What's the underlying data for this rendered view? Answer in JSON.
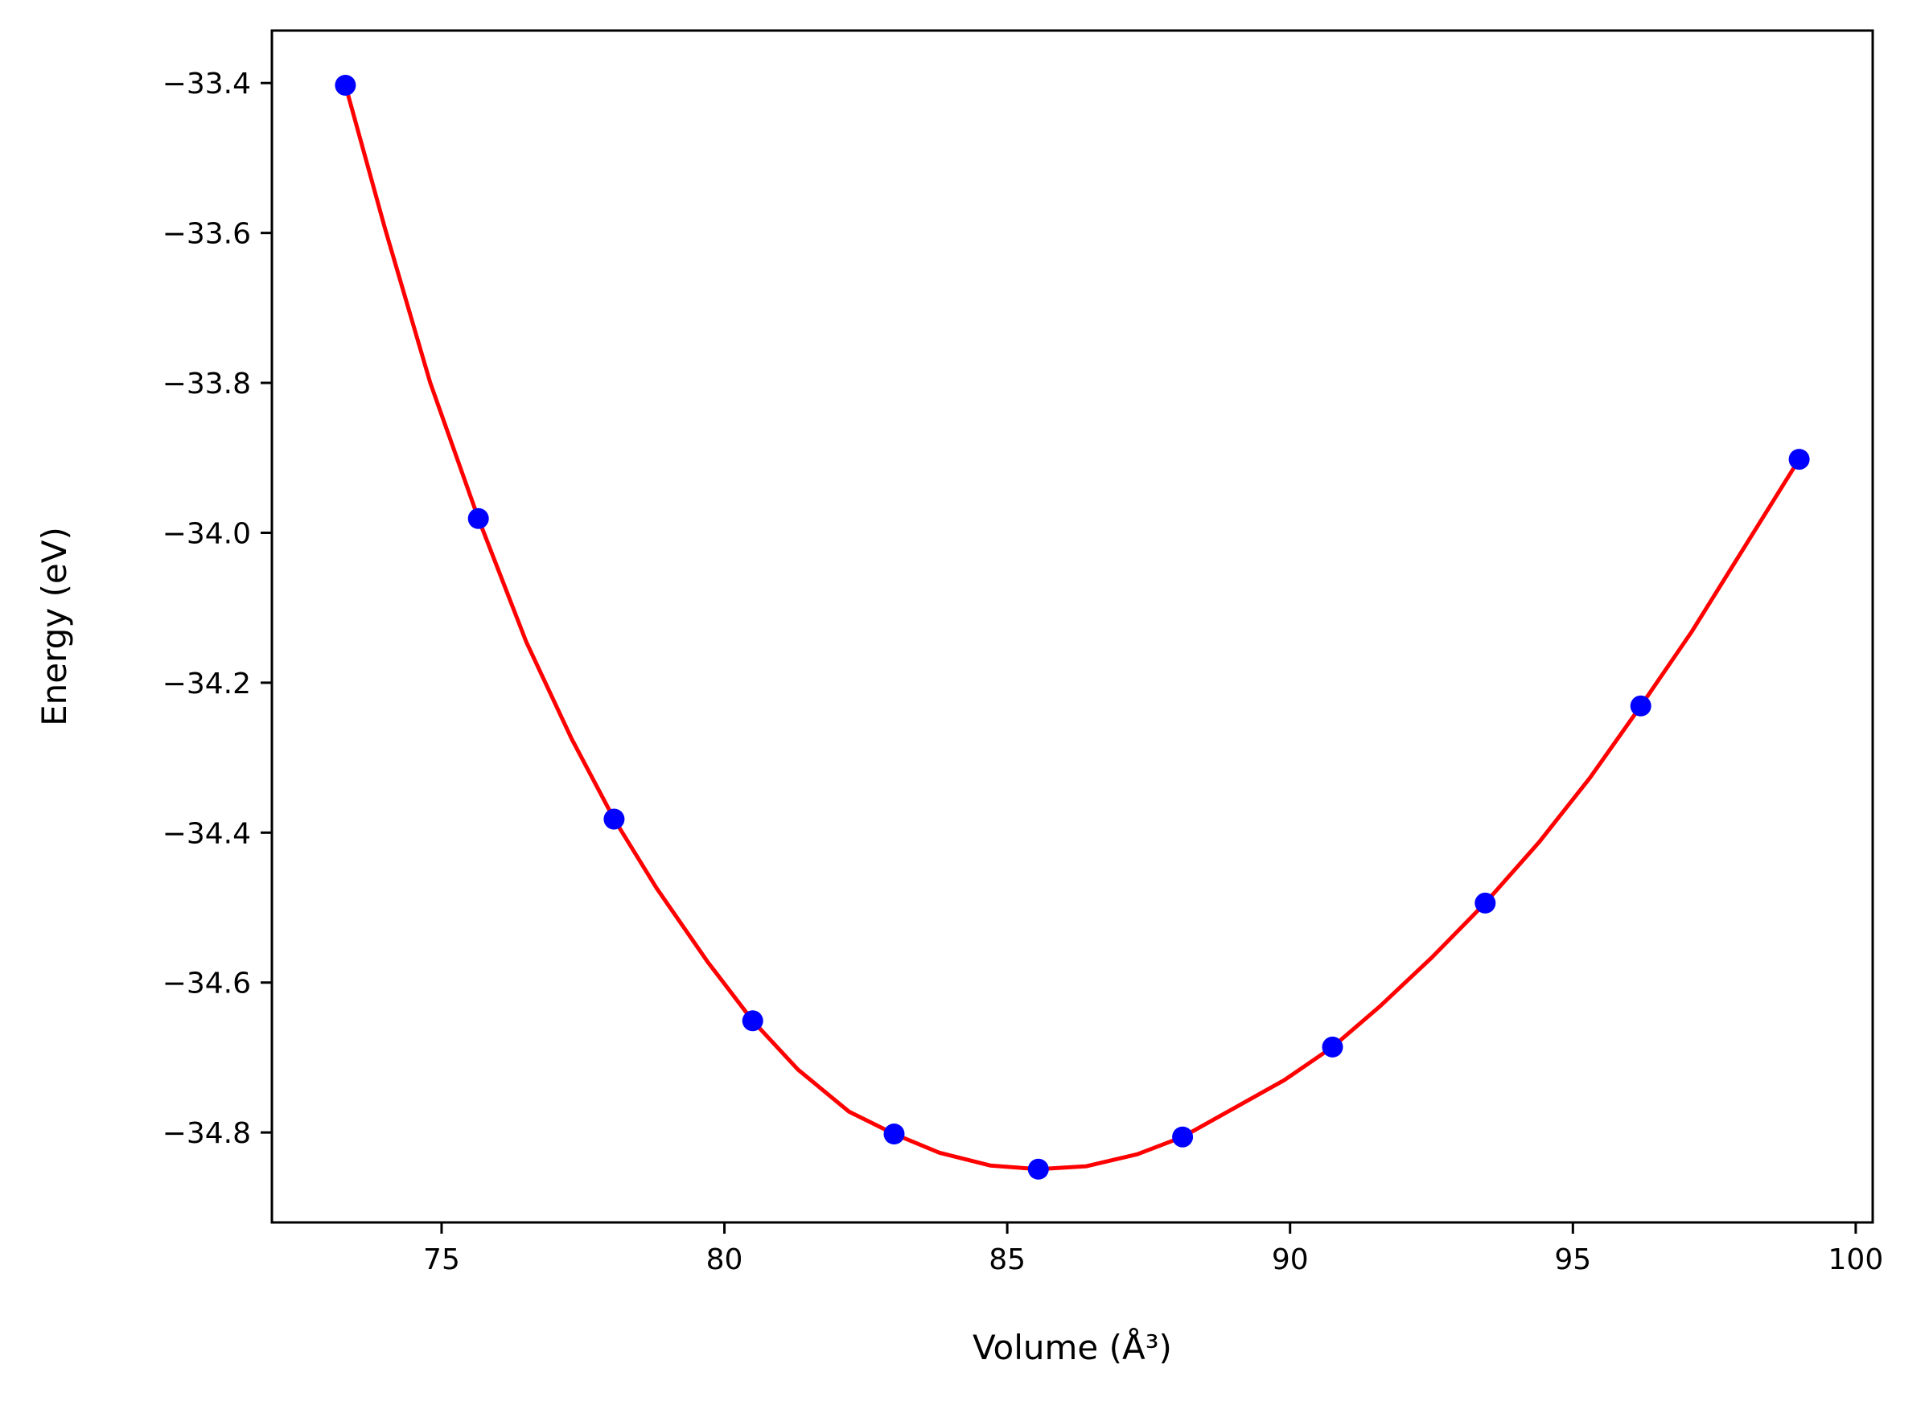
{
  "chart_data": {
    "type": "scatter",
    "title": "",
    "xlabel": "Volume (Å³)",
    "ylabel": "Energy (eV)",
    "xlim": [
      72,
      100.3
    ],
    "ylim": [
      -34.92,
      -33.33
    ],
    "xticks": [
      75,
      80,
      85,
      90,
      95,
      100
    ],
    "yticks": [
      -34.8,
      -34.6,
      -34.4,
      -34.2,
      -34.0,
      -33.8,
      -33.6,
      -33.4
    ],
    "xtick_labels": [
      "75",
      "80",
      "85",
      "90",
      "95",
      "100"
    ],
    "ytick_labels": [
      "−34.8",
      "−34.6",
      "−34.4",
      "−34.2",
      "−34.0",
      "−33.8",
      "−33.6",
      "−33.4"
    ],
    "grid": false,
    "series": [
      {
        "type": "scatter",
        "color": "#0000ff",
        "x": [
          73.3,
          75.65,
          78.05,
          80.5,
          83.0,
          85.55,
          88.1,
          90.75,
          93.45,
          96.2,
          99.0
        ],
        "y": [
          -33.403,
          -33.981,
          -34.382,
          -34.651,
          -34.802,
          -34.849,
          -34.806,
          -34.686,
          -34.494,
          -34.231,
          -33.902
        ]
      },
      {
        "type": "line",
        "color": "#ff0000",
        "x": [
          73.3,
          74.0,
          74.8,
          75.65,
          76.5,
          77.3,
          78.05,
          78.8,
          79.7,
          80.5,
          81.3,
          82.2,
          83.0,
          83.8,
          84.7,
          85.55,
          86.4,
          87.3,
          88.1,
          89.0,
          89.9,
          90.75,
          91.6,
          92.5,
          93.45,
          94.4,
          95.3,
          96.2,
          97.1,
          98.0,
          99.0
        ],
        "y": [
          -33.403,
          -33.594,
          -33.8,
          -33.981,
          -34.146,
          -34.275,
          -34.382,
          -34.474,
          -34.572,
          -34.651,
          -34.716,
          -34.772,
          -34.802,
          -34.827,
          -34.844,
          -34.849,
          -34.845,
          -34.829,
          -34.806,
          -34.768,
          -34.73,
          -34.686,
          -34.631,
          -34.567,
          -34.494,
          -34.413,
          -34.327,
          -34.231,
          -34.132,
          -34.023,
          -33.902
        ]
      }
    ]
  }
}
